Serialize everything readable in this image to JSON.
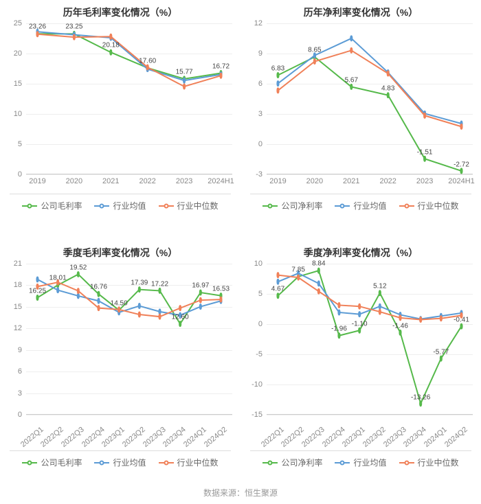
{
  "footer": "数据来源：恒生聚源",
  "colors": {
    "company": "#55b94a",
    "industry_avg": "#5b9bd5",
    "industry_median": "#f08058",
    "grid": "#eeeeee",
    "axis": "#cccccc",
    "title": "#333333",
    "tick": "#888888",
    "dlabel": "#444444",
    "bg": "#ffffff"
  },
  "fontsize": {
    "title": 14,
    "tick": 11,
    "legend": 12,
    "dlabel": 10,
    "footer": 12
  },
  "line_width": 2,
  "marker_radius": 3.5,
  "panel_plot_height": 220,
  "panel_xlabel_height": 32,
  "legend_labels": {
    "gross": [
      "公司毛利率",
      "行业均值",
      "行业中位数"
    ],
    "net": [
      "公司净利率",
      "行业均值",
      "行业中位数"
    ]
  },
  "charts": [
    {
      "id": "annual_gross",
      "title": "历年毛利率变化情况（%）",
      "type": "line",
      "categories": [
        "2019",
        "2020",
        "2021",
        "2022",
        "2023",
        "2024H1"
      ],
      "xlabel_rotate": false,
      "ylim": [
        0,
        25
      ],
      "ytick_step": 5,
      "series": [
        {
          "key": "company",
          "values": [
            23.26,
            23.25,
            20.18,
            17.6,
            15.77,
            16.72
          ],
          "labels": [
            23.26,
            23.25,
            20.18,
            17.6,
            15.77,
            16.72
          ]
        },
        {
          "key": "industry_avg",
          "values": [
            23.6,
            23.1,
            22.6,
            17.4,
            15.5,
            16.5
          ],
          "labels": []
        },
        {
          "key": "industry_median",
          "values": [
            23.2,
            22.7,
            22.8,
            17.7,
            14.5,
            16.3
          ],
          "labels": []
        }
      ],
      "legend": "gross"
    },
    {
      "id": "annual_net",
      "title": "历年净利率变化情况（%）",
      "type": "line",
      "categories": [
        "2019",
        "2020",
        "2021",
        "2022",
        "2023",
        "2024H1"
      ],
      "xlabel_rotate": false,
      "ylim": [
        -3,
        12
      ],
      "ytick_step": 3,
      "series": [
        {
          "key": "company",
          "values": [
            6.83,
            8.65,
            5.67,
            4.83,
            -1.51,
            -2.72
          ],
          "labels": [
            6.83,
            8.65,
            5.67,
            4.83,
            -1.51,
            -2.72
          ]
        },
        {
          "key": "industry_avg",
          "values": [
            6.0,
            8.8,
            10.5,
            7.1,
            3.0,
            2.0
          ],
          "labels": []
        },
        {
          "key": "industry_median",
          "values": [
            5.3,
            8.2,
            9.3,
            7.0,
            2.8,
            1.7
          ],
          "labels": []
        }
      ],
      "legend": "net"
    },
    {
      "id": "quarter_gross",
      "title": "季度毛利率变化情况（%）",
      "type": "line",
      "categories": [
        "2022Q1",
        "2022Q2",
        "2022Q3",
        "2022Q4",
        "2023Q1",
        "2023Q2",
        "2023Q3",
        "2023Q4",
        "2024Q1",
        "2024Q2"
      ],
      "xlabel_rotate": true,
      "ylim": [
        0,
        21
      ],
      "ytick_step": 3,
      "series": [
        {
          "key": "company",
          "values": [
            16.25,
            18.01,
            19.52,
            16.76,
            14.5,
            17.39,
            17.22,
            12.6,
            16.97,
            16.53
          ],
          "labels": [
            16.25,
            18.01,
            19.52,
            16.76,
            14.5,
            17.39,
            17.22,
            12.6,
            16.97,
            16.53
          ]
        },
        {
          "key": "industry_avg",
          "values": [
            18.8,
            17.3,
            16.5,
            15.8,
            14.2,
            15.1,
            14.3,
            13.8,
            15.0,
            15.8
          ],
          "labels": []
        },
        {
          "key": "industry_median",
          "values": [
            17.8,
            18.4,
            17.2,
            14.8,
            14.6,
            13.9,
            13.6,
            14.8,
            15.9,
            16.0
          ],
          "labels": []
        }
      ],
      "legend": "gross"
    },
    {
      "id": "quarter_net",
      "title": "季度净利率变化情况（%）",
      "type": "line",
      "categories": [
        "2022Q1",
        "2022Q2",
        "2022Q3",
        "2022Q4",
        "2023Q1",
        "2023Q2",
        "2023Q3",
        "2023Q4",
        "2024Q1",
        "2024Q2"
      ],
      "xlabel_rotate": true,
      "ylim": [
        -15,
        10
      ],
      "ytick_step": 5,
      "series": [
        {
          "key": "company",
          "values": [
            4.67,
            7.85,
            8.84,
            -1.96,
            -1.1,
            5.12,
            -1.46,
            -13.26,
            -5.77,
            -0.41
          ],
          "labels": [
            4.67,
            7.85,
            8.84,
            -1.96,
            -1.1,
            5.12,
            -1.46,
            -13.26,
            -5.77,
            -0.41
          ]
        },
        {
          "key": "industry_avg",
          "values": [
            7.0,
            8.4,
            6.7,
            1.9,
            1.6,
            2.9,
            1.5,
            0.8,
            1.3,
            1.8
          ],
          "labels": []
        },
        {
          "key": "industry_median",
          "values": [
            8.1,
            7.7,
            5.4,
            3.1,
            2.9,
            2.0,
            1.0,
            0.7,
            0.9,
            1.4
          ],
          "labels": []
        }
      ],
      "legend": "net"
    }
  ]
}
